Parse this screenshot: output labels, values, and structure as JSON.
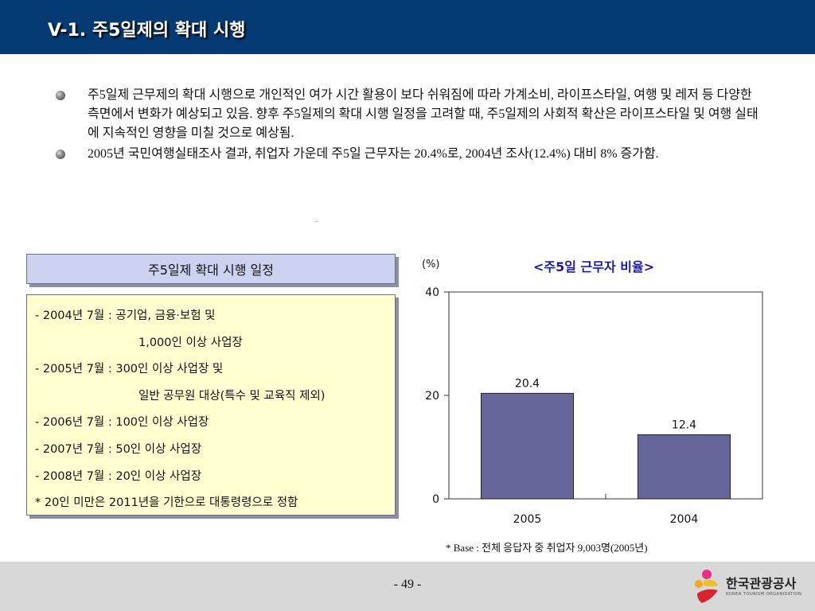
{
  "header": {
    "title": "V-1. 주5일제의 확대 시행"
  },
  "bullets": [
    "주5일제 근무제의 확대 시행으로 개인적인 여가 시간 활용이 보다 쉬워짐에 따라 가계소비, 라이프스타일, 여행 및 레저 등 다양한 측면에서 변화가 예상되고 있음. 향후 주5일제의 확대 시행 일정을 고려할 때, 주5일제의 사회적 확산은 라이프스타일 및 여행 실태에 지속적인 영향을 미칠 것으로 예상됨.",
    "2005년 국민여행실태조사 결과, 취업자 가운데 주5일 근무자는 20.4%로, 2004년 조사(12.4%) 대비 8% 증가함."
  ],
  "schedule": {
    "title": "주5일제 확대 시행 일정",
    "lines": [
      "- 2004년 7월 : 공기업, 금융·보험 및",
      "1,000인 이상 사업장",
      "- 2005년 7월 : 300인 이상 사업장 및",
      "일반 공무원 대상(특수 및 교육직 제외)",
      "- 2006년 7월 : 100인 이상 사업장",
      "- 2007년 7월 : 50인 이상 사업장",
      "- 2008년 7월 : 20인 이상 사업장",
      "* 20인 미만은 2011년을 기한으로 대통령령으로 정함"
    ]
  },
  "chart_data": {
    "type": "bar",
    "title": "<주5일 근무자 비율>",
    "unit_label": "(%)",
    "categories": [
      "2005",
      "2004"
    ],
    "values": [
      20.4,
      12.4
    ],
    "data_labels": [
      "20.4",
      "12.4"
    ],
    "ylim": [
      0,
      40
    ],
    "yticks": [
      0,
      20,
      40
    ],
    "ytick_labels": [
      "0",
      "20",
      "40"
    ],
    "bar_color": "#67669a",
    "grid": false,
    "note": "* Base : 전체 응답자 중 취업자 9,003명(2005년)"
  },
  "footer": {
    "page": "- 49 -",
    "logo_text": "한국관광공사",
    "logo_sub": "KOREA TOURISM ORGANIZATION"
  },
  "colors": {
    "header_bg": "#063a73",
    "schedule_title_bg": "#cdd2f0",
    "schedule_box_bg": "#ffffd0",
    "chart_title": "#1a1aa8"
  }
}
